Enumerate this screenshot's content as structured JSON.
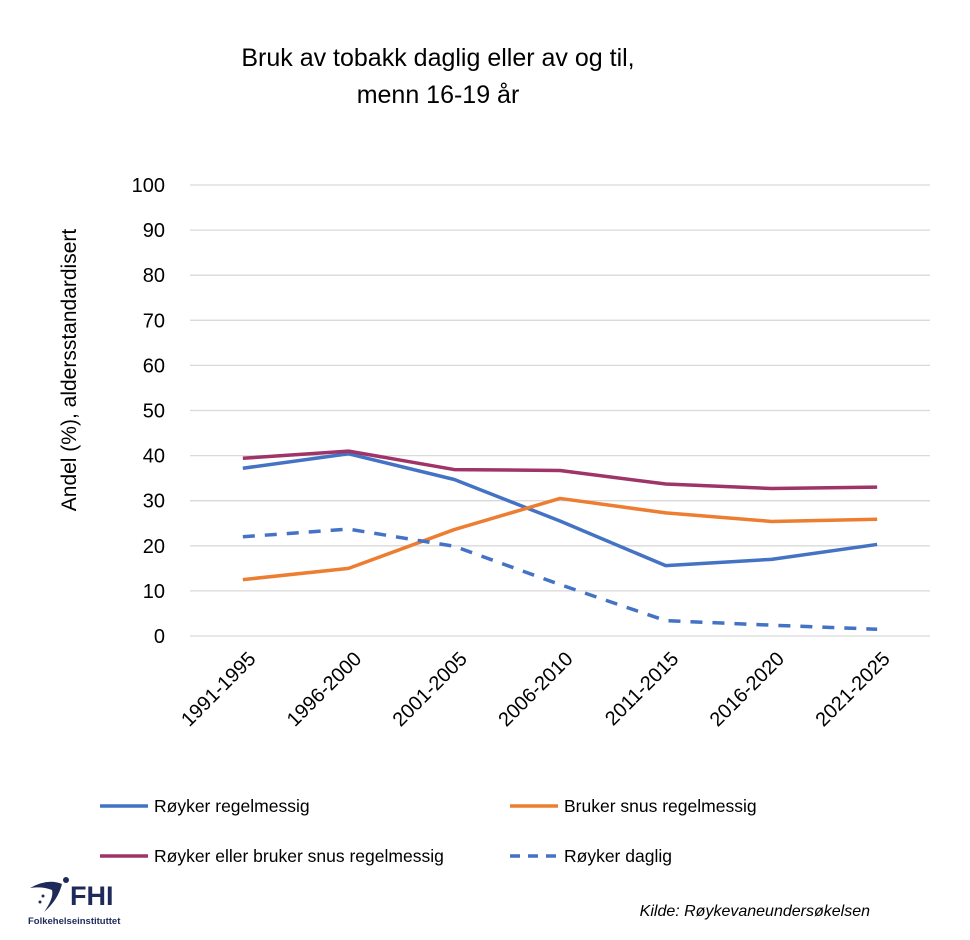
{
  "chart_data": {
    "type": "line",
    "title_lines": [
      "Bruk av tobakk daglig eller av og til,",
      "menn 16-19 år"
    ],
    "xlabel": "",
    "ylabel": "Andel (%), aldersstandardisert",
    "ylim": [
      0,
      100
    ],
    "yticks": [
      0,
      10,
      20,
      30,
      40,
      50,
      60,
      70,
      80,
      90,
      100
    ],
    "grid": true,
    "legend_position": "bottom",
    "categories": [
      "1991-1995",
      "1996-2000",
      "2001-2005",
      "2006-2010",
      "2011-2015",
      "2016-2020",
      "2021-2025"
    ],
    "series": [
      {
        "name": "Røyker regelmessig",
        "color": "#4472C4",
        "dash": false,
        "values": [
          37.2,
          40.4,
          34.7,
          25.5,
          15.6,
          17.0,
          20.3
        ]
      },
      {
        "name": "Bruker snus regelmessig",
        "color": "#ED7D31",
        "dash": false,
        "values": [
          12.5,
          15.0,
          23.6,
          30.5,
          27.3,
          25.4,
          25.9
        ]
      },
      {
        "name": "Røyker eller bruker snus regelmessig",
        "color": "#9E3468",
        "dash": false,
        "values": [
          39.4,
          41.0,
          36.9,
          36.7,
          33.7,
          32.7,
          33.0
        ]
      },
      {
        "name": "Røyker daglig",
        "color": "#4472C4",
        "dash": true,
        "values": [
          22.0,
          23.7,
          19.9,
          11.4,
          3.4,
          2.4,
          1.5
        ]
      }
    ],
    "source": "Kilde: Røykevaneundersøkelsen"
  },
  "logo": {
    "text": "FHI",
    "subtitle": "Folkehelseinstituttet",
    "color": "#1E2A5A"
  }
}
